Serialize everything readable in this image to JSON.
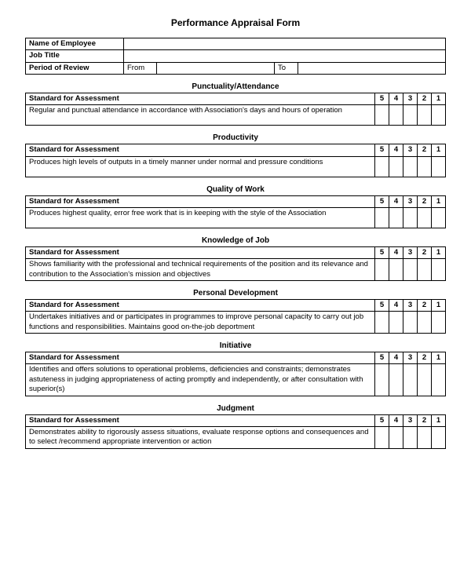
{
  "form_title": "Performance Appraisal Form",
  "header": {
    "name_label": "Name of Employee",
    "name_value": "",
    "jobtitle_label": "Job Title",
    "jobtitle_value": "",
    "period_label": "Period of Review",
    "from_label": "From",
    "from_value": "",
    "to_label": "To",
    "to_value": ""
  },
  "ratings": [
    "5",
    "4",
    "3",
    "2",
    "1"
  ],
  "standard_label": "Standard for Assessment",
  "sections": [
    {
      "heading": "Punctuality/Attendance",
      "desc": "Regular and punctual attendance in accordance with Association's days and hours of operation"
    },
    {
      "heading": "Productivity",
      "desc": "Produces high levels of outputs in a timely manner under normal and pressure conditions"
    },
    {
      "heading": "Quality of Work",
      "desc": "Produces highest quality, error free work that is in keeping with the style of the Association"
    },
    {
      "heading": "Knowledge of Job",
      "desc": "Shows familiarity with the professional and technical requirements of the position and its relevance and contribution to the Association's mission and objectives"
    },
    {
      "heading": "Personal Development",
      "desc": "Undertakes initiatives and or participates in programmes to improve personal capacity to carry out job functions and responsibilities.  Maintains good on-the-job deportment"
    },
    {
      "heading": "Initiative",
      "desc": "Identifies and offers solutions to operational problems, deficiencies and constraints; demonstrates astuteness in judging appropriateness of acting promptly and independently, or after consultation with superior(s)"
    },
    {
      "heading": "Judgment",
      "desc": "Demonstrates ability to rigorously assess situations, evaluate response options and consequences and to select /recommend appropriate intervention or action"
    }
  ]
}
